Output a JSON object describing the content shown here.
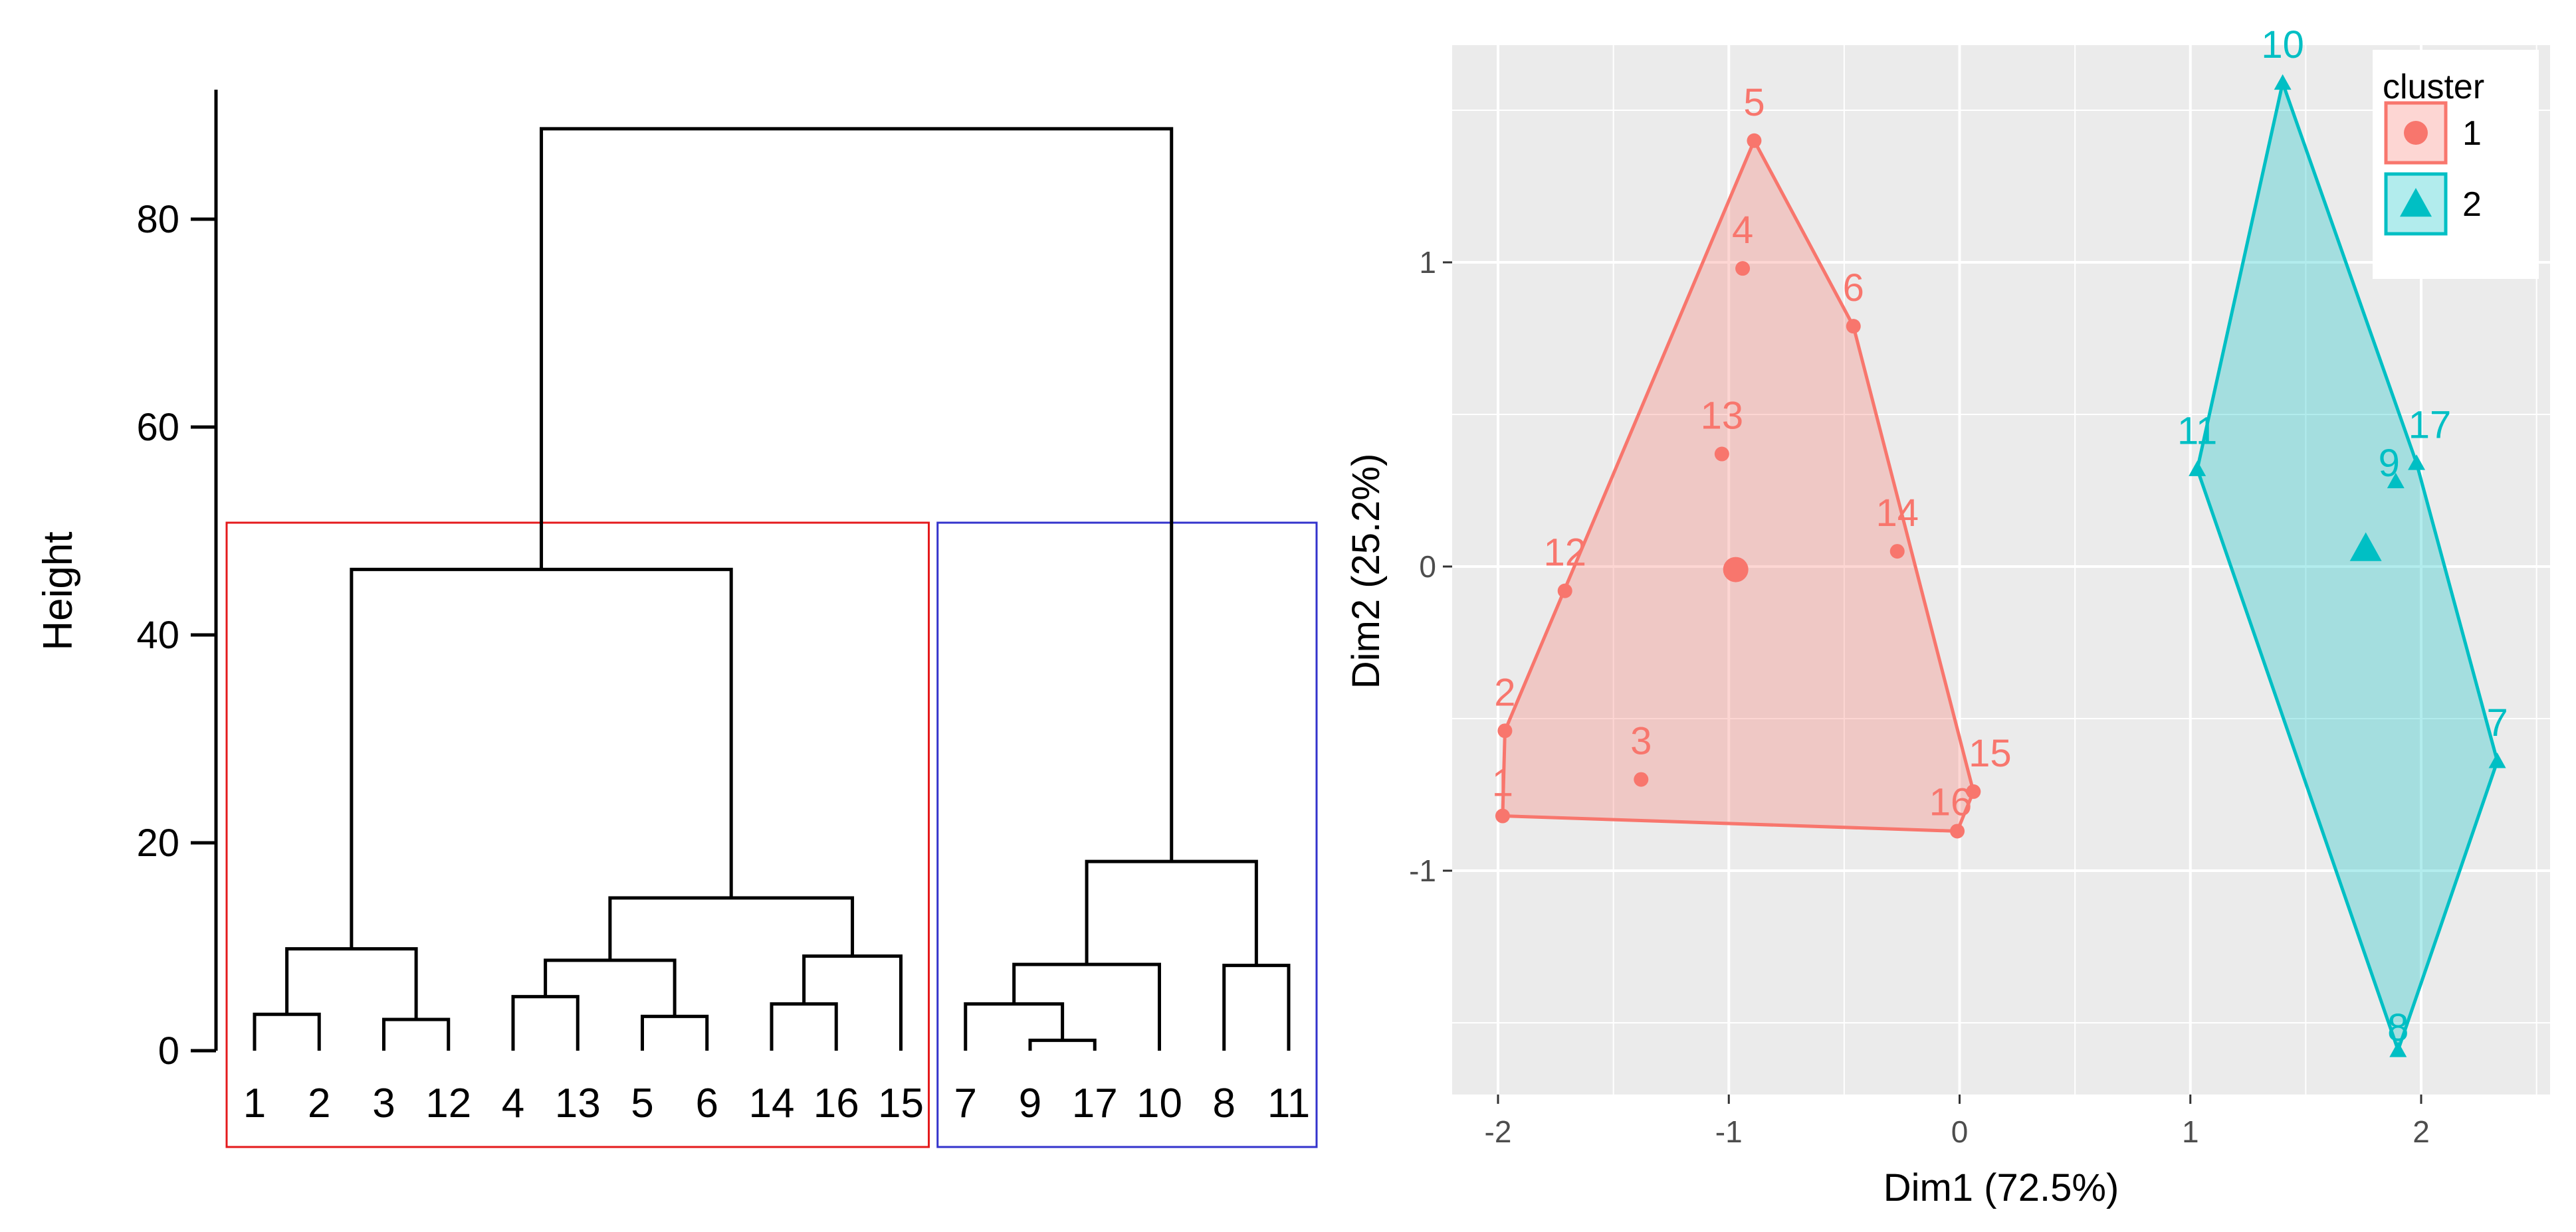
{
  "chart_data": [
    {
      "type": "dendrogram",
      "ylabel": "Height",
      "yticks": [
        0,
        20,
        40,
        60,
        80
      ],
      "ylim": [
        0,
        92
      ],
      "leaves": [
        "1",
        "2",
        "3",
        "12",
        "4",
        "13",
        "5",
        "6",
        "14",
        "16",
        "15",
        "7",
        "9",
        "17",
        "10",
        "8",
        "11"
      ],
      "merges": [
        {
          "left": "1",
          "right": "2",
          "height": 3.5
        },
        {
          "left": "3",
          "right": "12",
          "height": 3.0
        },
        {
          "left": "4",
          "right": "13",
          "height": 5.2
        },
        {
          "left": "5",
          "right": "6",
          "height": 3.3
        },
        {
          "left": "14",
          "right": "16",
          "height": 4.5
        },
        {
          "left": "7",
          "right": "9",
          "height": 4.5
        },
        {
          "left": "17",
          "right": "9",
          "height": 1.0
        },
        {
          "left": "8",
          "right": "11",
          "height": 8.2
        },
        {
          "left": "1,2",
          "right": "3,12",
          "height": 9.8
        },
        {
          "left": "4,13",
          "right": "5,6",
          "height": 8.7
        },
        {
          "left": "14,16",
          "right": "15",
          "height": 9.1
        },
        {
          "left": "4,13,5,6",
          "right": "14,16,15",
          "height": 14.7
        },
        {
          "left": "1,2,3,12",
          "right": "4,13,5,6,14,16,15",
          "height": 46.3
        },
        {
          "left": "7,9,17",
          "right": "10",
          "height": 8.3
        },
        {
          "left": "7,9,17,10",
          "right": "8,11",
          "height": 18.2
        },
        {
          "left": "cluster 1",
          "right": "cluster 2",
          "height": 88.7
        }
      ],
      "cut_boxes": [
        {
          "cluster": "1",
          "color": "#e41a1c",
          "leaves": [
            "1",
            "2",
            "3",
            "12",
            "4",
            "13",
            "5",
            "6",
            "14",
            "16",
            "15"
          ]
        },
        {
          "cluster": "2",
          "color": "#3333cc",
          "leaves": [
            "7",
            "9",
            "17",
            "10",
            "8",
            "11"
          ]
        }
      ]
    },
    {
      "type": "scatter",
      "xlabel": "Dim1 (72.5%)",
      "ylabel": "Dim2 (25.2%)",
      "xlim": [
        -2.2,
        2.55
      ],
      "ylim": [
        -1.75,
        1.75
      ],
      "xticks": [
        -2,
        -1,
        0,
        1,
        2
      ],
      "yticks": [
        -1,
        0,
        1
      ],
      "legend": {
        "title": "cluster",
        "position": "top-right"
      },
      "series": [
        {
          "name": "1",
          "color": "#f8766d",
          "marker": "circle",
          "points": [
            {
              "label": "1",
              "x": -1.98,
              "y": -0.82
            },
            {
              "label": "2",
              "x": -1.97,
              "y": -0.54
            },
            {
              "label": "3",
              "x": -1.38,
              "y": -0.7
            },
            {
              "label": "4",
              "x": -0.94,
              "y": 0.98
            },
            {
              "label": "5",
              "x": -0.89,
              "y": 1.4
            },
            {
              "label": "6",
              "x": -0.46,
              "y": 0.79
            },
            {
              "label": "12",
              "x": -1.71,
              "y": -0.08
            },
            {
              "label": "13",
              "x": -1.03,
              "y": 0.37
            },
            {
              "label": "14",
              "x": -0.27,
              "y": 0.05
            },
            {
              "label": "15",
              "x": 0.06,
              "y": -0.74
            },
            {
              "label": "16",
              "x": -0.01,
              "y": -0.87
            }
          ],
          "hull": [
            "1",
            "16",
            "15",
            "6",
            "5",
            "2"
          ],
          "centroid": {
            "x": -0.97,
            "y": -0.01
          }
        },
        {
          "name": "2",
          "color": "#00bfc4",
          "marker": "triangle",
          "points": [
            {
              "label": "7",
              "x": 2.33,
              "y": -0.64
            },
            {
              "label": "8",
              "x": 1.9,
              "y": -1.59
            },
            {
              "label": "9",
              "x": 1.89,
              "y": 0.28
            },
            {
              "label": "10",
              "x": 1.4,
              "y": 1.59
            },
            {
              "label": "11",
              "x": 1.03,
              "y": 0.32
            },
            {
              "label": "17",
              "x": 1.98,
              "y": 0.34
            }
          ],
          "hull": [
            "10",
            "17",
            "7",
            "8",
            "11"
          ],
          "centroid": {
            "x": 1.76,
            "y": 0.06
          }
        }
      ]
    }
  ]
}
